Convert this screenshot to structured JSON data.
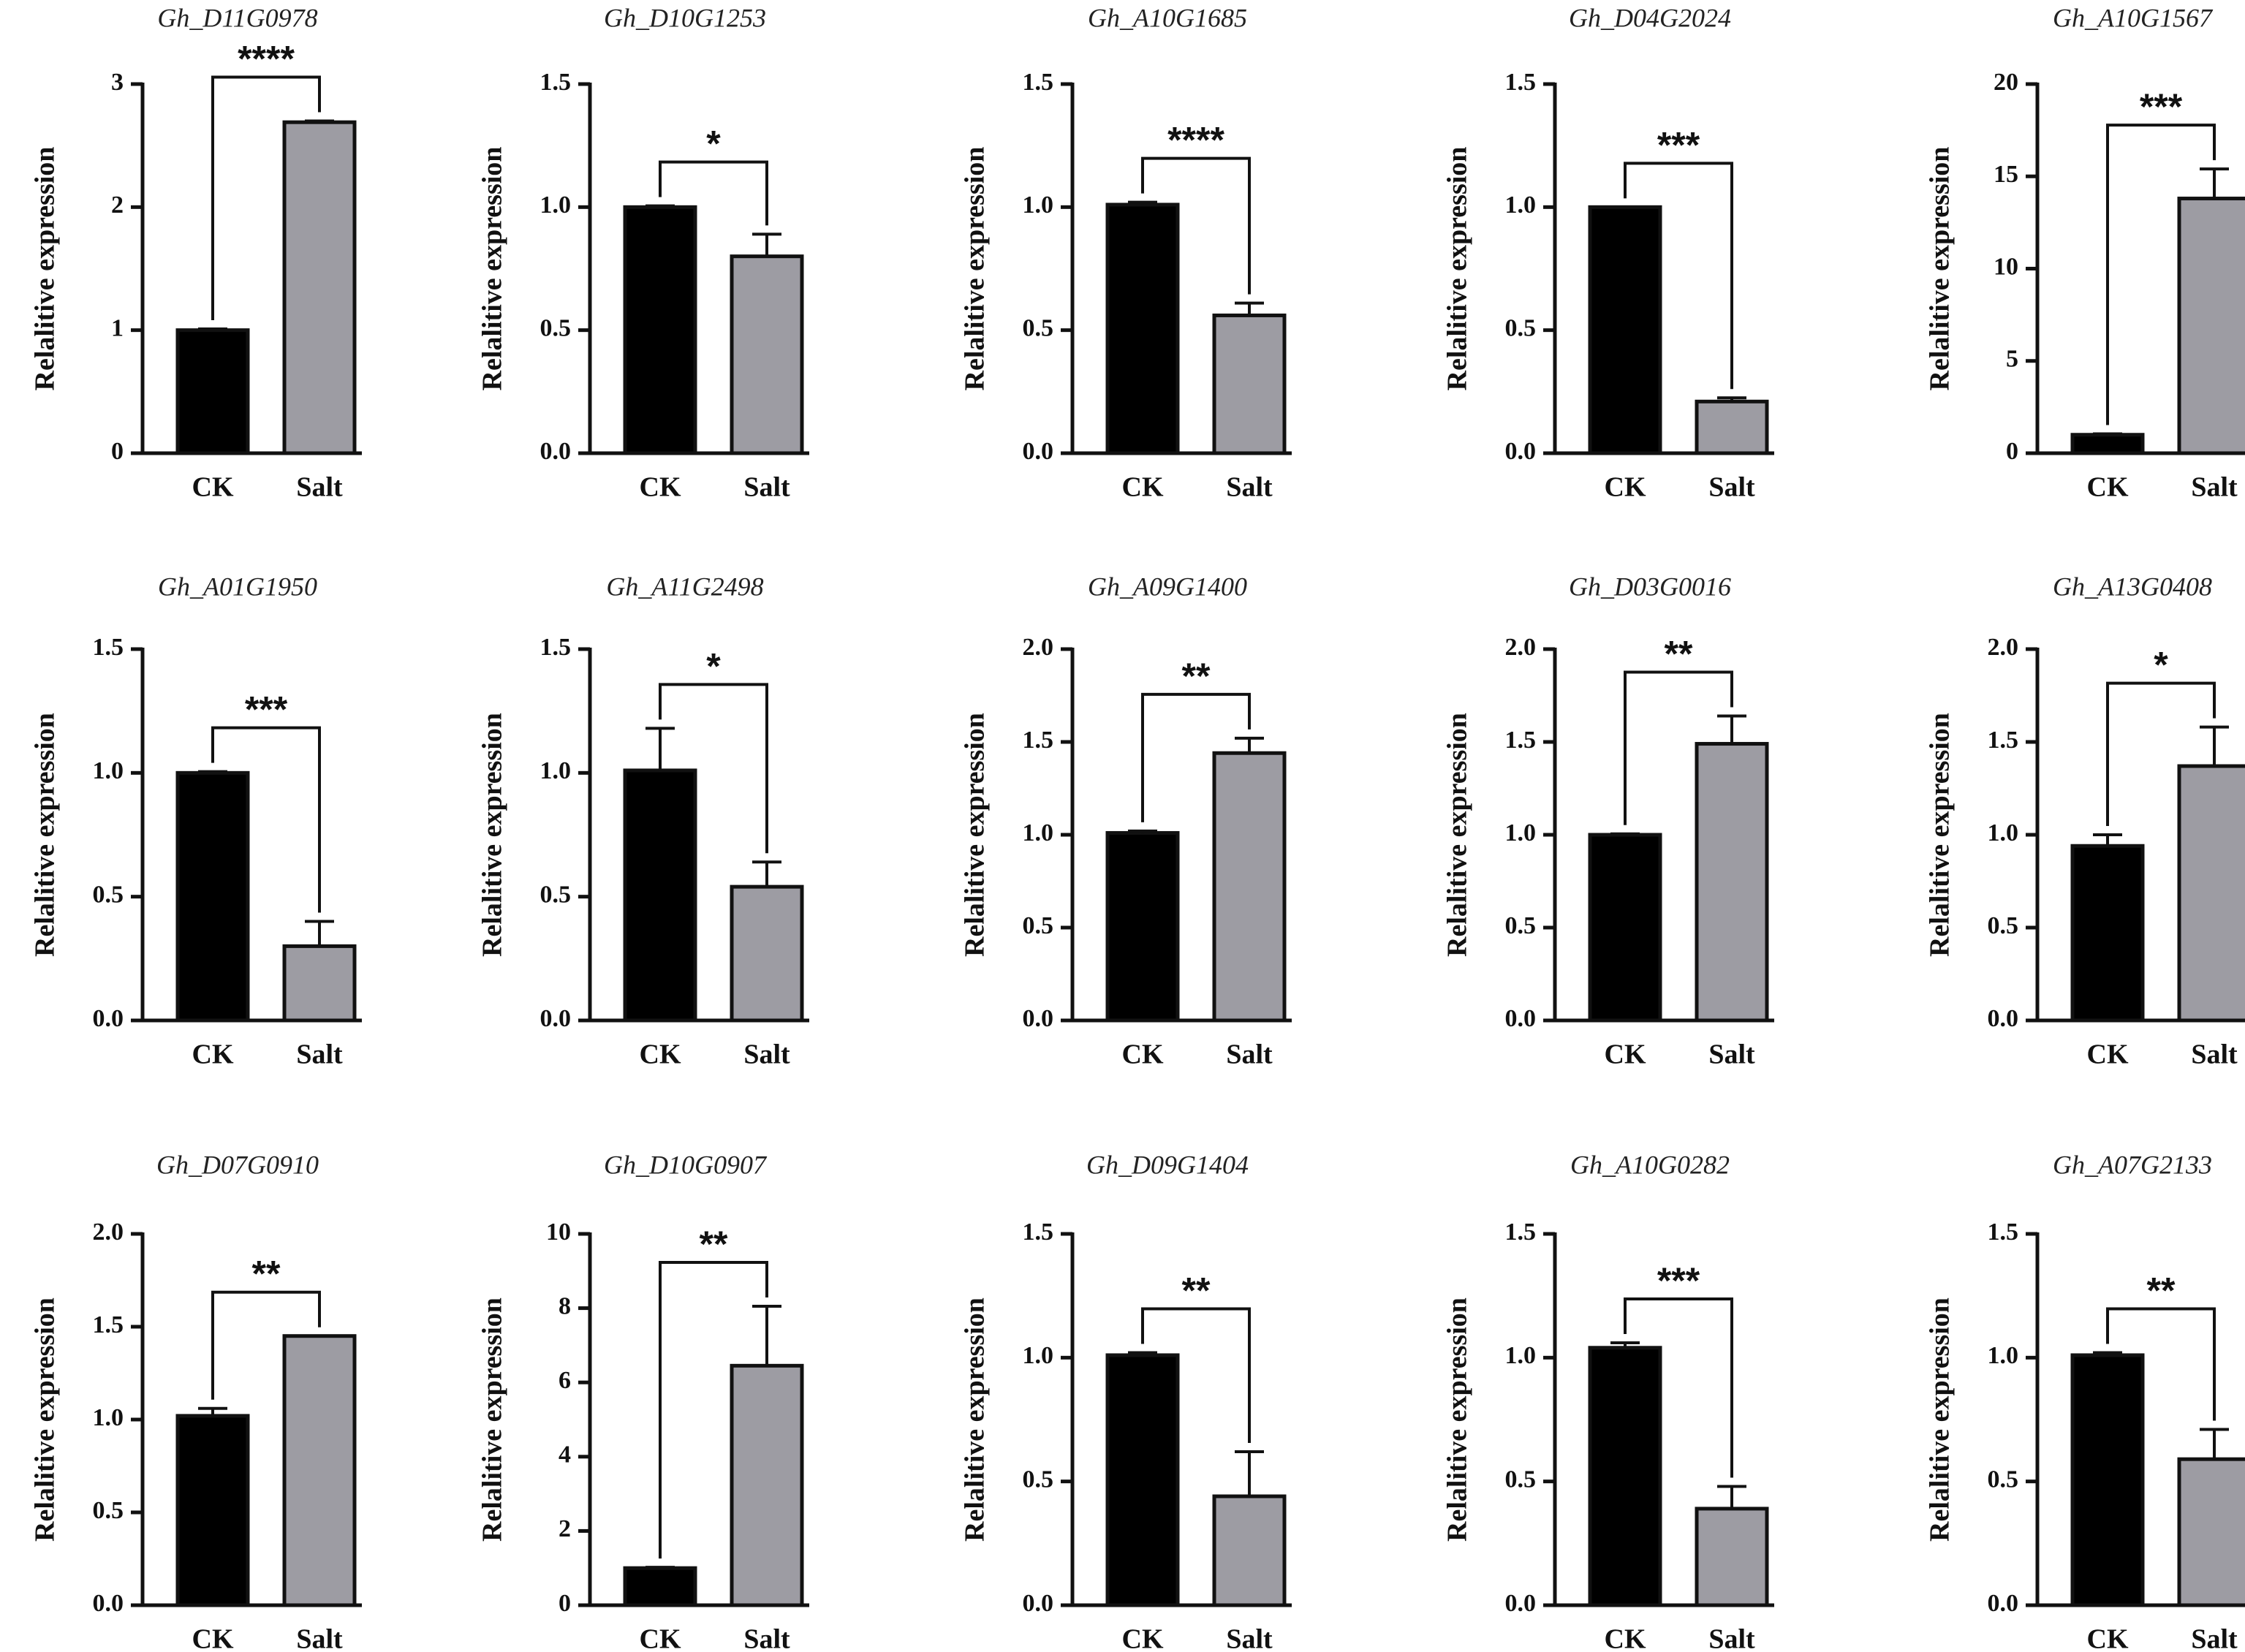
{
  "colors": {
    "ck": "#000000",
    "salt": "#9d9ca3",
    "axis": "#111111"
  },
  "chart_data": [
    {
      "type": "bar",
      "title": "Gh_D11G0978",
      "categories": [
        "CK",
        "Salt"
      ],
      "values": [
        1.0,
        2.69
      ],
      "errors": [
        0.01,
        0.01
      ],
      "ylim": [
        0,
        3
      ],
      "yticks": [
        0,
        1,
        2,
        3
      ],
      "ytick_labels": [
        "0",
        "1",
        "2",
        "3"
      ],
      "ylabel": "Relalitive expression",
      "significance": "****"
    },
    {
      "type": "bar",
      "title": "Gh_D10G1253",
      "categories": [
        "CK",
        "Salt"
      ],
      "values": [
        1.0,
        0.8
      ],
      "errors": [
        0.005,
        0.09
      ],
      "ylim": [
        0,
        1.5
      ],
      "yticks": [
        0,
        0.5,
        1.0,
        1.5
      ],
      "ytick_labels": [
        "0.0",
        "0.5",
        "1.0",
        "1.5"
      ],
      "ylabel": "Relalitive expression",
      "significance": "*"
    },
    {
      "type": "bar",
      "title": "Gh_A10G1685",
      "categories": [
        "CK",
        "Salt"
      ],
      "values": [
        1.01,
        0.56
      ],
      "errors": [
        0.01,
        0.05
      ],
      "ylim": [
        0,
        1.5
      ],
      "yticks": [
        0,
        0.5,
        1.0,
        1.5
      ],
      "ytick_labels": [
        "0.0",
        "0.5",
        "1.0",
        "1.5"
      ],
      "ylabel": "Relalitive expression",
      "significance": "****"
    },
    {
      "type": "bar",
      "title": "Gh_D04G2024",
      "categories": [
        "CK",
        "Salt"
      ],
      "values": [
        1.0,
        0.21
      ],
      "errors": [
        0.0,
        0.015
      ],
      "ylim": [
        0,
        1.5
      ],
      "yticks": [
        0,
        0.5,
        1.0,
        1.5
      ],
      "ytick_labels": [
        "0.0",
        "0.5",
        "1.0",
        "1.5"
      ],
      "ylabel": "Relalitive expression",
      "significance": "***"
    },
    {
      "type": "bar",
      "title": "Gh_A10G1567",
      "categories": [
        "CK",
        "Salt"
      ],
      "values": [
        1.0,
        13.8
      ],
      "errors": [
        0.05,
        1.6
      ],
      "ylim": [
        0,
        20
      ],
      "yticks": [
        0,
        5,
        10,
        15,
        20
      ],
      "ytick_labels": [
        "0",
        "5",
        "10",
        "15",
        "20"
      ],
      "ylabel": "Relalitive expression",
      "significance": "***"
    },
    {
      "type": "bar",
      "title": "Gh_A01G1950",
      "categories": [
        "CK",
        "Salt"
      ],
      "values": [
        1.0,
        0.3
      ],
      "errors": [
        0.005,
        0.1
      ],
      "ylim": [
        0,
        1.5
      ],
      "yticks": [
        0,
        0.5,
        1.0,
        1.5
      ],
      "ytick_labels": [
        "0.0",
        "0.5",
        "1.0",
        "1.5"
      ],
      "ylabel": "Relalitive expression",
      "significance": "***"
    },
    {
      "type": "bar",
      "title": "Gh_A11G2498",
      "categories": [
        "CK",
        "Salt"
      ],
      "values": [
        1.01,
        0.54
      ],
      "errors": [
        0.17,
        0.1
      ],
      "ylim": [
        0,
        1.5
      ],
      "yticks": [
        0,
        0.5,
        1.0,
        1.5
      ],
      "ytick_labels": [
        "0.0",
        "0.5",
        "1.0",
        "1.5"
      ],
      "ylabel": "Relalitive expression",
      "significance": "*"
    },
    {
      "type": "bar",
      "title": "Gh_A09G1400",
      "categories": [
        "CK",
        "Salt"
      ],
      "values": [
        1.01,
        1.44
      ],
      "errors": [
        0.01,
        0.08
      ],
      "ylim": [
        0,
        2.0
      ],
      "yticks": [
        0,
        0.5,
        1.0,
        1.5,
        2.0
      ],
      "ytick_labels": [
        "0.0",
        "0.5",
        "1.0",
        "1.5",
        "2.0"
      ],
      "ylabel": "Relalitive expression",
      "significance": "**"
    },
    {
      "type": "bar",
      "title": "Gh_D03G0016",
      "categories": [
        "CK",
        "Salt"
      ],
      "values": [
        1.0,
        1.49
      ],
      "errors": [
        0.005,
        0.15
      ],
      "ylim": [
        0,
        2.0
      ],
      "yticks": [
        0,
        0.5,
        1.0,
        1.5,
        2.0
      ],
      "ytick_labels": [
        "0.0",
        "0.5",
        "1.0",
        "1.5",
        "2.0"
      ],
      "ylabel": "Relalitive expression",
      "significance": "**"
    },
    {
      "type": "bar",
      "title": "Gh_A13G0408",
      "categories": [
        "CK",
        "Salt"
      ],
      "values": [
        0.94,
        1.37
      ],
      "errors": [
        0.06,
        0.21
      ],
      "ylim": [
        0,
        2.0
      ],
      "yticks": [
        0,
        0.5,
        1.0,
        1.5,
        2.0
      ],
      "ytick_labels": [
        "0.0",
        "0.5",
        "1.0",
        "1.5",
        "2.0"
      ],
      "ylabel": "Relalitive expression",
      "significance": "*"
    },
    {
      "type": "bar",
      "title": "Gh_D07G0910",
      "categories": [
        "CK",
        "Salt"
      ],
      "values": [
        1.02,
        1.45
      ],
      "errors": [
        0.04,
        0.0
      ],
      "ylim": [
        0,
        2.0
      ],
      "yticks": [
        0,
        0.5,
        1.0,
        1.5,
        2.0
      ],
      "ytick_labels": [
        "0.0",
        "0.5",
        "1.0",
        "1.5",
        "2.0"
      ],
      "ylabel": "Relalitive expression",
      "significance": "**"
    },
    {
      "type": "bar",
      "title": "Gh_D10G0907",
      "categories": [
        "CK",
        "Salt"
      ],
      "values": [
        1.0,
        6.45
      ],
      "errors": [
        0.02,
        1.6
      ],
      "ylim": [
        0,
        10
      ],
      "yticks": [
        0,
        2,
        4,
        6,
        8,
        10
      ],
      "ytick_labels": [
        "0",
        "2",
        "4",
        "6",
        "8",
        "10"
      ],
      "ylabel": "Relalitive expression",
      "significance": "**"
    },
    {
      "type": "bar",
      "title": "Gh_D09G1404",
      "categories": [
        "CK",
        "Salt"
      ],
      "values": [
        1.01,
        0.44
      ],
      "errors": [
        0.01,
        0.18
      ],
      "ylim": [
        0,
        1.5
      ],
      "yticks": [
        0,
        0.5,
        1.0,
        1.5
      ],
      "ytick_labels": [
        "0.0",
        "0.5",
        "1.0",
        "1.5"
      ],
      "ylabel": "Relalitive expression",
      "significance": "**"
    },
    {
      "type": "bar",
      "title": "Gh_A10G0282",
      "categories": [
        "CK",
        "Salt"
      ],
      "values": [
        1.04,
        0.39
      ],
      "errors": [
        0.02,
        0.09
      ],
      "ylim": [
        0,
        1.5
      ],
      "yticks": [
        0,
        0.5,
        1.0,
        1.5
      ],
      "ytick_labels": [
        "0.0",
        "0.5",
        "1.0",
        "1.5"
      ],
      "ylabel": "Relalitive expression",
      "significance": "***"
    },
    {
      "type": "bar",
      "title": "Gh_A07G2133",
      "categories": [
        "CK",
        "Salt"
      ],
      "values": [
        1.01,
        0.59
      ],
      "errors": [
        0.01,
        0.12
      ],
      "ylim": [
        0,
        1.5
      ],
      "yticks": [
        0,
        0.5,
        1.0,
        1.5
      ],
      "ytick_labels": [
        "0.0",
        "0.5",
        "1.0",
        "1.5"
      ],
      "ylabel": "Relalitive expression",
      "significance": "**"
    }
  ]
}
